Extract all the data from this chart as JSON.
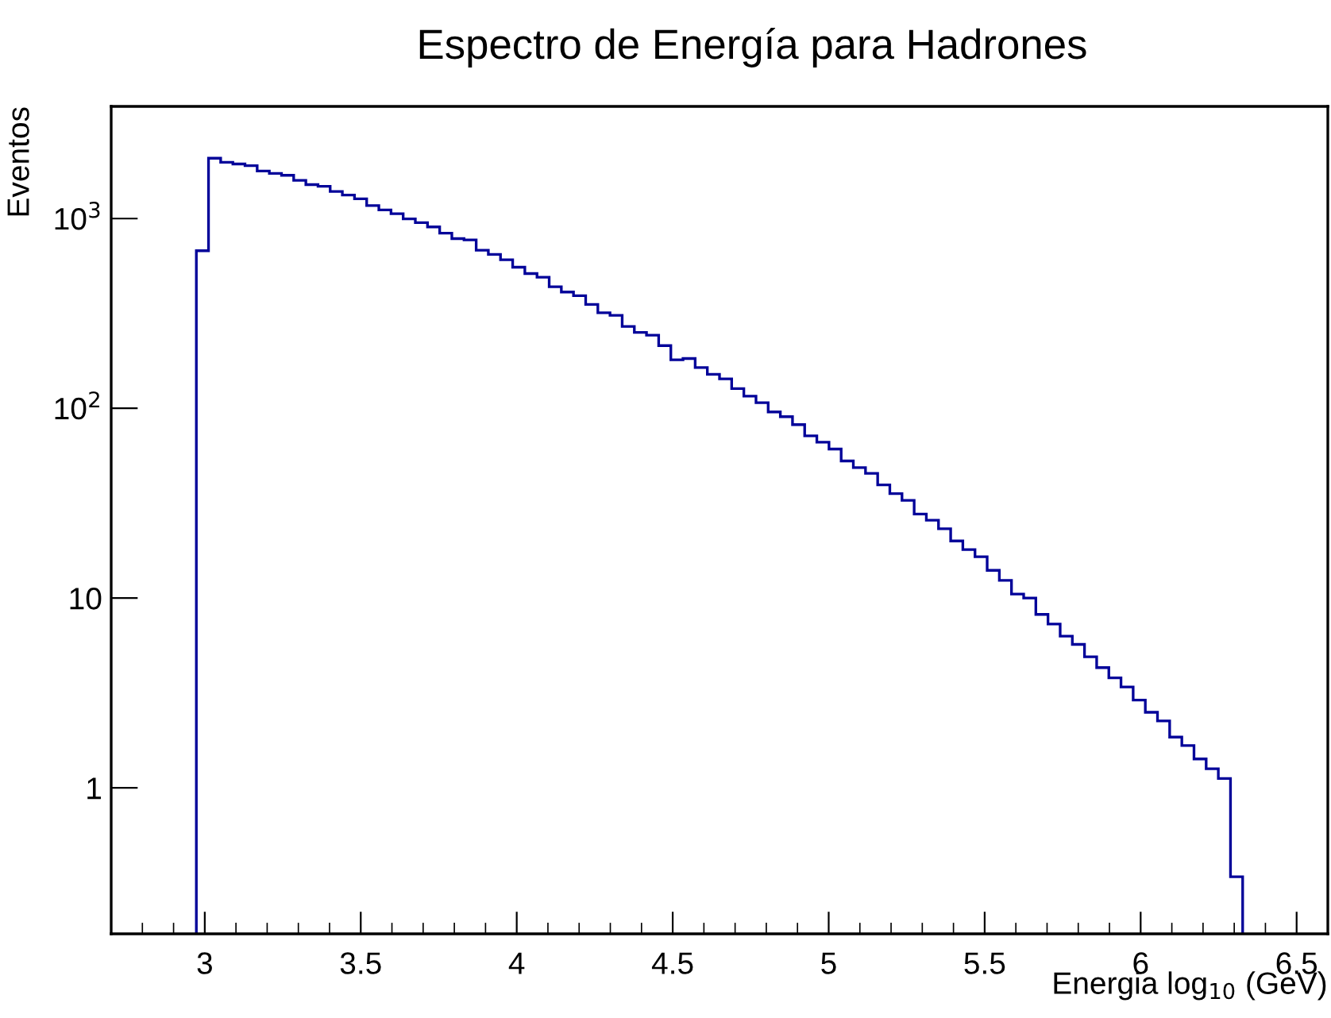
{
  "chart_data": {
    "type": "histogram",
    "title": "Espectro de Energía para Hadrones",
    "xlabel": "Energia log$_{10}$ (GeV)",
    "ylabel": "Eventos",
    "bins": [
      2.973,
      3.012,
      3.051,
      3.09,
      3.129,
      3.168,
      3.207,
      3.246,
      3.285,
      3.324,
      3.363,
      3.402,
      3.441,
      3.48,
      3.519,
      3.558,
      3.597,
      3.636,
      3.675,
      3.714,
      3.753,
      3.792,
      3.831,
      3.87,
      3.909,
      3.948,
      3.987,
      4.026,
      4.065,
      4.104,
      4.143,
      4.182,
      4.221,
      4.26,
      4.299,
      4.338,
      4.377,
      4.416,
      4.455,
      4.494,
      4.533,
      4.572,
      4.611,
      4.65,
      4.689,
      4.728,
      4.767,
      4.806,
      4.845,
      4.884,
      4.923,
      4.962,
      5.001,
      5.04,
      5.079,
      5.118,
      5.157,
      5.196,
      5.235,
      5.274,
      5.313,
      5.352,
      5.391,
      5.43,
      5.469,
      5.508,
      5.547,
      5.586,
      5.625,
      5.664,
      5.703,
      5.742,
      5.781,
      5.82,
      5.859,
      5.898,
      5.937,
      5.976,
      6.015,
      6.054,
      6.093,
      6.132,
      6.171,
      6.21,
      6.249,
      6.288,
      6.327
    ],
    "values": [
      677,
      2080,
      1980,
      1940,
      1900,
      1780,
      1730,
      1690,
      1590,
      1510,
      1480,
      1390,
      1330,
      1270,
      1170,
      1110,
      1060,
      996,
      951,
      904,
      837,
      784,
      772,
      681,
      647,
      607,
      554,
      513,
      491,
      437,
      410,
      392,
      353,
      319,
      309,
      270,
      251,
      243,
      214,
      180,
      183,
      164,
      151,
      143,
      127,
      116,
      107,
      95.7,
      90.3,
      82,
      71.6,
      66.3,
      61,
      52.8,
      48.7,
      45.4,
      39.5,
      35.5,
      32.7,
      27.7,
      25.7,
      23.2,
      20,
      18,
      16.5,
      14,
      12.4,
      10.5,
      10,
      8.2,
      7.3,
      6.3,
      5.7,
      4.9,
      4.3,
      3.8,
      3.4,
      2.9,
      2.5,
      2.25,
      1.85,
      1.67,
      1.42,
      1.26,
      1.12,
      0.34
    ],
    "color": "#000099",
    "log": "y",
    "grid": false,
    "xlim": [
      2.7,
      6.6
    ],
    "xticks": [
      3,
      3.5,
      4,
      4.5,
      5,
      5.5,
      6,
      6.5
    ],
    "ylim": [
      0.17,
      3900
    ],
    "yticks": [
      1,
      10,
      {
        "value": 100,
        "label": "10$^{2}$"
      },
      {
        "value": 1000,
        "label": "10$^{3}$"
      }
    ]
  }
}
